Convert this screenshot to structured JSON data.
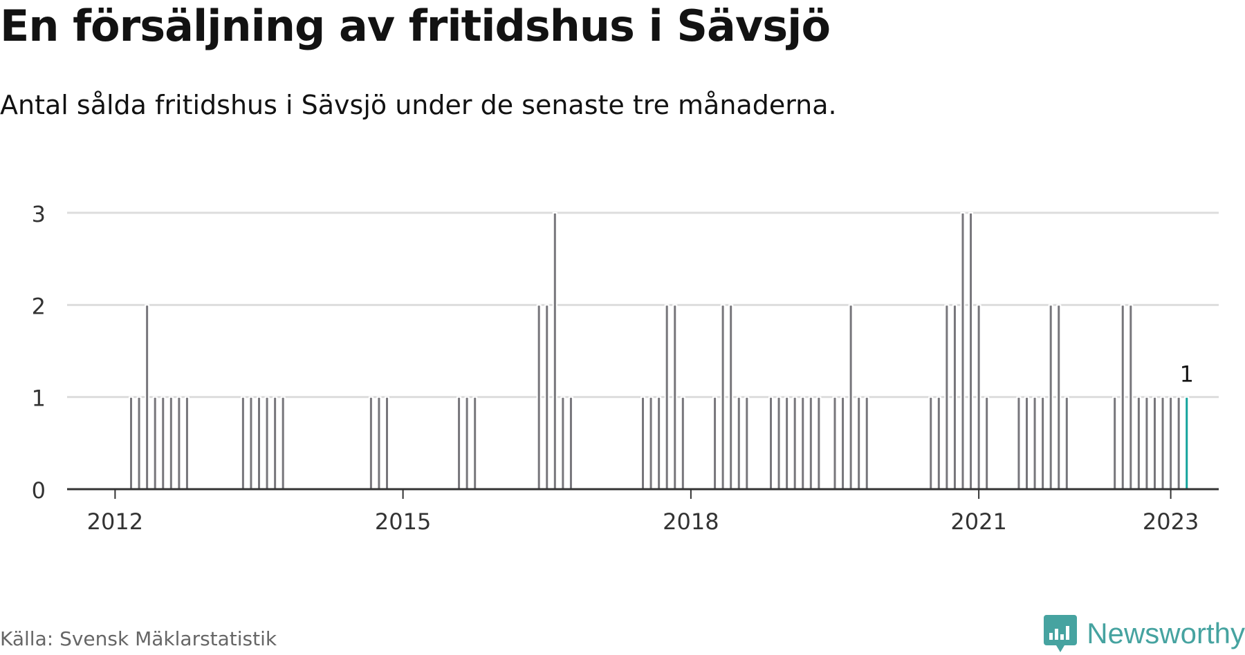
{
  "header": {
    "title": "En försäljning av fritidshus i Sävsjö",
    "subtitle": "Antal sålda fritidshus i Sävsjö under de senaste tre månaderna."
  },
  "footer": {
    "source": "Källa: Svensk Mäklarstatistik",
    "brand": "Newsworthy"
  },
  "colors": {
    "bar": "#77767b",
    "highlight": "#12a39c",
    "grid": "#dddddd",
    "axis": "#333333",
    "brand": "#46a3a0"
  },
  "chart_data": {
    "type": "bar",
    "title": "En försäljning av fritidshus i Sävsjö",
    "subtitle": "Antal sålda fritidshus i Sävsjö under de senaste tre månaderna.",
    "xlabel": "",
    "ylabel": "",
    "ylim": [
      0,
      3
    ],
    "yticks": [
      0,
      1,
      2,
      3
    ],
    "xticks": [
      "2012",
      "2015",
      "2018",
      "2021",
      "2023"
    ],
    "x_start": "2011-07",
    "x_end": "2023-07",
    "grid": true,
    "legend": "none",
    "highlight_label": "1",
    "series": [
      {
        "x": [
          "2012-03",
          "2012-04",
          "2012-05",
          "2012-06",
          "2012-07",
          "2012-08",
          "2012-09",
          "2012-10",
          "2013-05",
          "2013-06",
          "2013-07",
          "2013-08",
          "2013-09",
          "2013-10",
          "2014-09",
          "2014-10",
          "2014-11",
          "2015-08",
          "2015-09",
          "2015-10",
          "2016-06",
          "2016-07",
          "2016-08",
          "2016-09",
          "2016-10",
          "2017-07",
          "2017-08",
          "2017-09",
          "2017-10",
          "2017-11",
          "2017-12",
          "2018-04",
          "2018-05",
          "2018-06",
          "2018-07",
          "2018-08",
          "2018-11",
          "2018-12",
          "2019-01",
          "2019-02",
          "2019-03",
          "2019-04",
          "2019-05",
          "2019-07",
          "2019-08",
          "2019-09",
          "2019-10",
          "2019-11",
          "2020-07",
          "2020-08",
          "2020-09",
          "2020-10",
          "2020-11",
          "2020-12",
          "2021-01",
          "2021-02",
          "2021-06",
          "2021-07",
          "2021-08",
          "2021-09",
          "2021-10",
          "2021-11",
          "2021-12",
          "2022-06",
          "2022-07",
          "2022-08",
          "2022-09",
          "2022-10",
          "2022-11",
          "2022-12",
          "2023-01",
          "2023-02",
          "2023-03"
        ],
        "values": [
          1,
          1,
          2,
          1,
          1,
          1,
          1,
          1,
          1,
          1,
          1,
          1,
          1,
          1,
          1,
          1,
          1,
          1,
          1,
          1,
          2,
          2,
          3,
          1,
          1,
          1,
          1,
          1,
          2,
          2,
          1,
          1,
          2,
          2,
          1,
          1,
          1,
          1,
          1,
          1,
          1,
          1,
          1,
          1,
          1,
          2,
          1,
          1,
          1,
          1,
          2,
          2,
          3,
          3,
          2,
          1,
          1,
          1,
          1,
          1,
          2,
          2,
          1,
          1,
          2,
          2,
          1,
          1,
          1,
          1,
          1,
          1,
          1
        ]
      }
    ]
  }
}
